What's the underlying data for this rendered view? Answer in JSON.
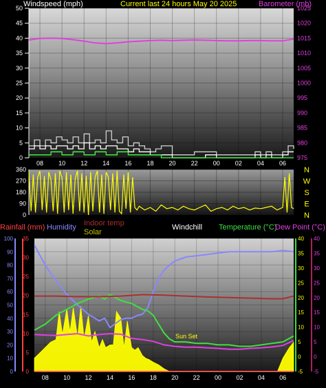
{
  "header": {
    "windspeed_label": "Windspeed (mph)",
    "title": "Current last 24 hours May 20 2025",
    "barometer_label": "Barometer (mb)"
  },
  "direction_labels": [
    "N",
    "W",
    "S",
    "E",
    "N"
  ],
  "bottom_header": {
    "rainfall": "Rainfall (mm)",
    "humidity": "Humidity",
    "indoor_temp": "Indoor temp",
    "solar": "Solar",
    "windchill": "Windchill",
    "temperature": "Temperature (°C)",
    "dew_point": "Dew Point (°C)"
  },
  "annotations": {
    "sun_set": "Sun Set"
  },
  "colors": {
    "windspeed": "#ffffff",
    "gust": "#d0d0d0",
    "wind_min": "#40ff40",
    "barometer": "#e040e0",
    "wind_direction": "#ffff00",
    "temperature": "#40e040",
    "humidity": "#8888ff",
    "indoor_temp": "#aa3030",
    "dew_point": "#e040e0",
    "solar": "#ffff00",
    "rainfall": "#ff4040",
    "windchill": "#ffffff"
  },
  "chart_data": [
    {
      "type": "line",
      "name": "wind-barometer",
      "x_ticks": [
        "08",
        "10",
        "12",
        "14",
        "16",
        "18",
        "20",
        "22",
        "00",
        "02",
        "04",
        "06"
      ],
      "left_axis": {
        "ticks": [
          0,
          5,
          10,
          15,
          20,
          25,
          30,
          35,
          40,
          45,
          50
        ],
        "ylim": [
          0,
          50
        ]
      },
      "right_axis": {
        "ticks": [
          975,
          980,
          985,
          990,
          995,
          1000,
          1005,
          1010,
          1015,
          1020,
          1025
        ],
        "ylim": [
          975,
          1025
        ]
      },
      "series": [
        {
          "key": "barometer",
          "axis": "right",
          "x_hours": [
            0,
            1,
            2,
            3,
            4,
            5,
            6,
            6.5,
            7,
            7.5,
            8,
            9,
            10,
            11,
            12,
            13,
            14,
            15,
            16,
            17,
            18,
            19,
            20,
            21,
            22,
            23,
            24
          ],
          "values": [
            1014.4,
            1014.9,
            1015,
            1014.9,
            1014.5,
            1014,
            1013.4,
            1013.3,
            1013.2,
            1013.3,
            1013.4,
            1013.8,
            1014,
            1014.2,
            1014.3,
            1014.2,
            1014.3,
            1014.4,
            1014.3,
            1014.2,
            1014.1,
            1014.1,
            1014.2,
            1014.2,
            1014.1,
            1014.1,
            1014.7
          ]
        },
        {
          "key": "gust",
          "axis": "left",
          "x_hours": [
            0,
            0.5,
            1,
            1.5,
            2,
            2.5,
            3,
            3.5,
            4,
            4.5,
            5,
            5.5,
            6,
            6.5,
            7,
            7.5,
            8,
            8.5,
            9,
            9.5,
            10,
            10.5,
            11,
            11.5,
            12,
            13,
            14,
            15,
            16,
            17,
            18,
            19,
            20,
            20.5,
            21,
            21.5,
            22,
            22.5,
            23,
            23.5,
            24
          ],
          "values": [
            4,
            6,
            4,
            6,
            5,
            7,
            6,
            5,
            7,
            5,
            8,
            5,
            6,
            5,
            9,
            6,
            5,
            7,
            4,
            5,
            4,
            3,
            2,
            3,
            4,
            1,
            1,
            2,
            2,
            1,
            1,
            1,
            1,
            2,
            1,
            2,
            1,
            1,
            2,
            4,
            3
          ]
        },
        {
          "key": "windspeed",
          "axis": "left",
          "x_hours": [
            0,
            0.5,
            1,
            1.5,
            2,
            2.5,
            3,
            3.5,
            4,
            4.5,
            5,
            5.5,
            6,
            6.5,
            7,
            7.5,
            8,
            8.5,
            9,
            9.5,
            10,
            10.5,
            11,
            11.5,
            12,
            13,
            14,
            15,
            16,
            17,
            18,
            19,
            20,
            20.5,
            21,
            21.5,
            22,
            22.5,
            23,
            23.5,
            24
          ],
          "values": [
            3,
            4,
            3,
            4,
            3,
            4,
            4,
            3,
            4,
            3,
            5,
            3,
            4,
            3,
            4,
            4,
            3,
            3,
            2,
            3,
            2,
            2,
            1,
            1,
            1,
            0,
            0,
            0,
            1,
            0,
            0,
            0,
            0,
            1,
            0,
            1,
            0,
            0,
            1,
            2,
            2
          ]
        },
        {
          "key": "wind_min",
          "axis": "left",
          "x_hours": [
            0,
            1,
            2,
            3,
            4,
            5,
            6,
            7,
            8,
            9,
            10,
            11,
            12,
            13,
            14,
            16,
            18,
            20,
            22,
            24
          ],
          "values": [
            1,
            1,
            2,
            1,
            2,
            1,
            2,
            1,
            2,
            1,
            1,
            1,
            0,
            0,
            0,
            0,
            0,
            0,
            0,
            0
          ]
        }
      ]
    },
    {
      "type": "line",
      "name": "wind-direction",
      "x_ticks": [
        "08",
        "10",
        "12",
        "14",
        "16",
        "18",
        "20",
        "22",
        "00",
        "02",
        "04",
        "06"
      ],
      "y_ticks": [
        0,
        90,
        180,
        270,
        360
      ],
      "ylim": [
        0,
        360
      ],
      "series": [
        {
          "key": "wind_direction",
          "x_hours": [
            0,
            0.2,
            0.4,
            0.6,
            0.8,
            1,
            1.2,
            1.4,
            1.6,
            1.8,
            2,
            2.2,
            2.4,
            2.6,
            2.8,
            3,
            3.2,
            3.4,
            3.6,
            3.8,
            4,
            4.2,
            4.4,
            4.6,
            4.8,
            5,
            5.2,
            5.4,
            5.6,
            5.8,
            6,
            6.2,
            6.4,
            6.6,
            6.8,
            7,
            7.2,
            7.4,
            7.6,
            7.8,
            8,
            8.2,
            8.4,
            8.6,
            8.8,
            9,
            9.2,
            9.4,
            9.6,
            9.8,
            10,
            10.5,
            11,
            11.5,
            12,
            12.5,
            13,
            13.5,
            14,
            14.5,
            15,
            15.5,
            16,
            16.5,
            17,
            17.5,
            18,
            18.5,
            19,
            19.5,
            20,
            20.5,
            21,
            21.5,
            22,
            22.5,
            23,
            23.2,
            23.4,
            23.6,
            23.8,
            24
          ],
          "values": [
            340,
            30,
            320,
            20,
            300,
            350,
            40,
            310,
            20,
            340,
            280,
            30,
            330,
            10,
            350,
            300,
            20,
            340,
            40,
            320,
            10,
            290,
            350,
            30,
            330,
            20,
            310,
            0,
            340,
            30,
            300,
            350,
            20,
            320,
            10,
            340,
            300,
            40,
            330,
            20,
            350,
            30,
            10,
            320,
            50,
            340,
            20,
            300,
            60,
            40,
            70,
            40,
            60,
            30,
            80,
            50,
            60,
            40,
            70,
            50,
            40,
            60,
            80,
            30,
            50,
            60,
            40,
            70,
            50,
            60,
            40,
            55,
            50,
            60,
            70,
            40,
            60,
            300,
            20,
            330,
            60,
            50
          ]
        }
      ]
    },
    {
      "type": "line",
      "name": "temperature-humidity-solar",
      "x_ticks": [
        "08",
        "10",
        "12",
        "14",
        "16",
        "18",
        "20",
        "22",
        "00",
        "02",
        "04",
        "06"
      ],
      "humidity_axis": {
        "ticks": [
          0,
          10,
          20,
          30,
          40,
          50,
          60,
          70,
          80,
          90,
          100
        ],
        "ylim": [
          0,
          100
        ]
      },
      "rainfall_axis": {
        "ticks": [
          0,
          5,
          10,
          15,
          20,
          25,
          30,
          35
        ],
        "ylim": [
          0,
          35
        ]
      },
      "temperature_axis": {
        "ticks": [
          -5,
          0,
          5,
          10,
          15,
          20,
          25,
          30,
          35,
          40
        ],
        "ylim": [
          -5,
          40
        ]
      },
      "series": [
        {
          "key": "humidity",
          "axis": "humidity",
          "x_hours": [
            0,
            1,
            2,
            3,
            4,
            5,
            6,
            6.5,
            7,
            7.5,
            8,
            8.5,
            9,
            9.5,
            10,
            10.5,
            11,
            11.5,
            12,
            12.5,
            13,
            14,
            15,
            16,
            17,
            18,
            19,
            20,
            21,
            22,
            23,
            24
          ],
          "values": [
            95,
            80,
            68,
            58,
            50,
            43,
            38,
            40,
            33,
            36,
            39,
            40,
            40,
            42,
            43,
            48,
            60,
            70,
            76,
            80,
            83,
            86,
            87,
            88,
            89,
            90,
            90,
            90,
            90,
            90,
            91,
            90
          ]
        },
        {
          "key": "temperature",
          "axis": "temperature",
          "x_hours": [
            0,
            1,
            2,
            3,
            4,
            5,
            6,
            6.5,
            7,
            7.5,
            8,
            8.5,
            9,
            9.5,
            10,
            10.5,
            11,
            11.5,
            12,
            12.5,
            13,
            14,
            15,
            16,
            17,
            18,
            19,
            20,
            21,
            22,
            23,
            24
          ],
          "values": [
            9,
            11,
            14,
            16,
            18,
            19.5,
            20.5,
            19.5,
            21,
            20,
            19,
            18.5,
            18,
            17,
            16,
            15.5,
            14,
            11,
            8,
            6,
            5,
            5,
            4.5,
            4.5,
            4,
            4,
            3.5,
            3.5,
            4,
            4.5,
            5,
            7
          ]
        },
        {
          "key": "indoor_temp",
          "axis": "temperature",
          "x_hours": [
            0,
            2,
            4,
            6,
            8,
            10,
            12,
            14,
            16,
            18,
            20,
            22,
            23,
            24
          ],
          "values": [
            20.5,
            20.5,
            20.3,
            20.3,
            20.5,
            21,
            20.8,
            20.5,
            20.2,
            20,
            19.8,
            19.6,
            19.6,
            20.5
          ]
        },
        {
          "key": "dew_point",
          "axis": "temperature",
          "x_hours": [
            0,
            1,
            2,
            3,
            4,
            5,
            6,
            7,
            8,
            9,
            10,
            11,
            12,
            13,
            14,
            15,
            16,
            17,
            18,
            19,
            20,
            21,
            22,
            23,
            24
          ],
          "values": [
            7.5,
            7.3,
            7.2,
            7.5,
            7.8,
            7,
            7.5,
            7.8,
            7.6,
            6.2,
            5.8,
            5.2,
            4,
            3.5,
            3.2,
            3.2,
            3,
            2.8,
            2.5,
            2.5,
            2.8,
            3,
            3.3,
            3.8,
            5.5
          ]
        },
        {
          "key": "windchill",
          "axis": "temperature",
          "x_hours": [
            0,
            24
          ],
          "values": [
            -5,
            -5
          ]
        },
        {
          "key": "rainfall",
          "axis": "rainfall",
          "x_hours": [
            0,
            24
          ],
          "values": [
            0,
            0
          ]
        },
        {
          "key": "solar",
          "axis": "humidity",
          "x_hours": [
            0,
            0.5,
            1,
            1.5,
            2,
            2.3,
            2.6,
            3,
            3.3,
            3.6,
            4,
            4.3,
            4.6,
            5,
            5.3,
            5.6,
            6,
            6.3,
            6.6,
            7,
            7.3,
            7.6,
            8,
            8.3,
            8.6,
            9,
            9.3,
            9.6,
            10,
            10.3,
            10.6,
            11,
            11.5,
            12,
            12.5,
            13,
            13.5,
            14,
            14.5,
            15,
            15.5,
            16,
            16.5,
            17,
            17.5,
            18,
            18.5,
            19,
            19.5,
            20,
            20.5,
            21,
            21.5,
            22,
            22.5,
            23,
            23.3,
            23.6,
            24
          ],
          "values": [
            10,
            14,
            18,
            22,
            24,
            45,
            28,
            47,
            30,
            48,
            26,
            49,
            25,
            42,
            22,
            30,
            18,
            24,
            18,
            20,
            20,
            45,
            40,
            18,
            38,
            18,
            16,
            18,
            12,
            10,
            9,
            7,
            5,
            2,
            0,
            0,
            0,
            0,
            0,
            0,
            0,
            0,
            0,
            0,
            0,
            0,
            0,
            0,
            0,
            0,
            0,
            0,
            0,
            0,
            0,
            10,
            14,
            18,
            22
          ]
        }
      ]
    }
  ]
}
